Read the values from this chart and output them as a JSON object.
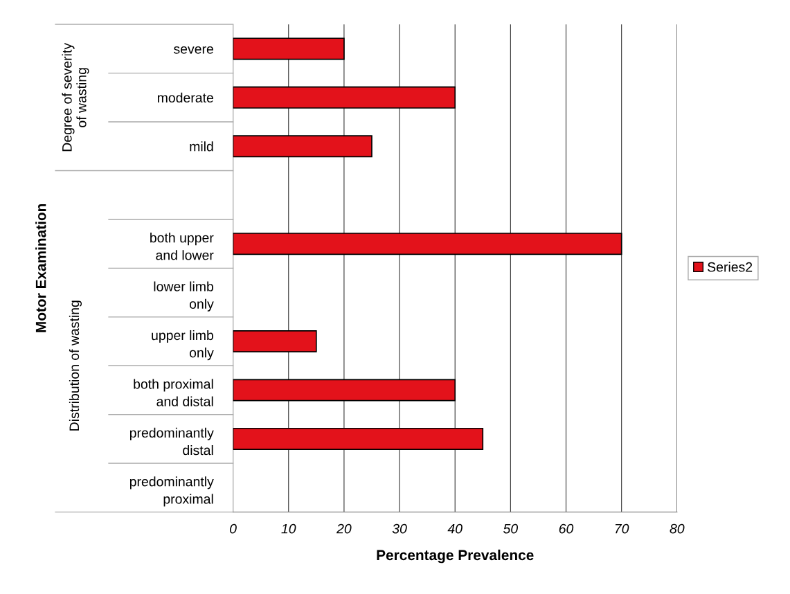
{
  "chart_data": {
    "type": "bar",
    "orientation": "horizontal",
    "categories": [
      "severe",
      "moderate",
      "mild",
      null,
      "both upper\nand lower",
      "lower limb\nonly",
      "upper limb\nonly",
      "both proximal\nand distal",
      "predominantly\ndistal",
      "predominantly\nproximal"
    ],
    "series": [
      {
        "name": "Series2",
        "color": "#e3121b",
        "values": [
          20,
          40,
          25,
          null,
          70,
          0,
          15,
          40,
          45,
          0
        ]
      }
    ],
    "xlim": [
      0,
      80
    ],
    "xticks": [
      0,
      10,
      20,
      30,
      40,
      50,
      60,
      70,
      80
    ],
    "xlabel": "Percentage Prevalence",
    "annotations": [
      "Motor Examination",
      "Degree of severity\nof wasting",
      "Distribution of wasting"
    ],
    "grid": "x",
    "legend": "right"
  }
}
